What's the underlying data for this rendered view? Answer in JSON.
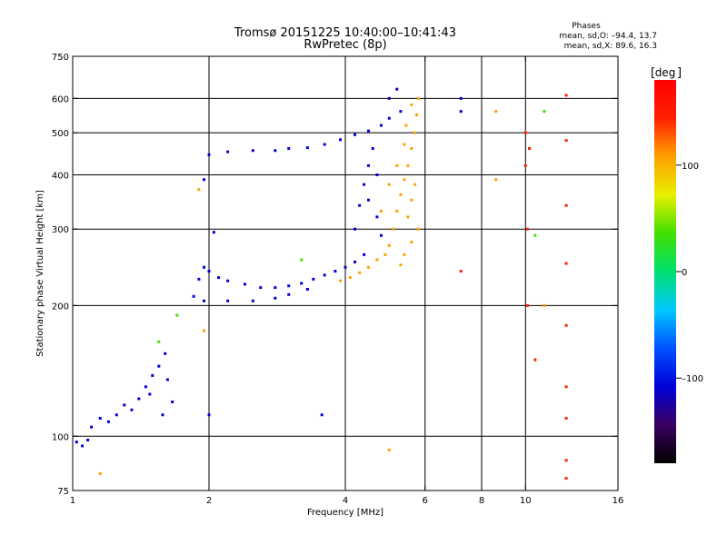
{
  "chart_data": {
    "type": "scatter",
    "title": "Tromsø 20151225 10:40:00–10:41:43",
    "subtitle": "RwPretec (8p)",
    "stats_title": "Phases",
    "stats_o": "mean, sd,O: –94.4, 13.7",
    "stats_x": "mean, sd,X:  89.6, 16.3",
    "xlabel": "Frequency [MHz]",
    "ylabel": "Stationary phase Virtual Height [km]",
    "x_scale": "log",
    "y_scale": "log",
    "xlim": [
      1,
      16
    ],
    "ylim": [
      75,
      750
    ],
    "x_ticks": [
      1,
      2,
      4,
      6,
      8,
      10,
      16
    ],
    "x_tick_labels": [
      "1",
      "2",
      "4",
      "6",
      "8",
      "10",
      "16"
    ],
    "y_ticks": [
      75,
      100,
      200,
      300,
      400,
      500,
      600,
      750
    ],
    "y_tick_labels": [
      "75",
      "100",
      "200",
      "300",
      "400",
      "500",
      "600",
      "750"
    ],
    "grid_x": [
      2,
      4,
      6,
      8,
      10
    ],
    "grid_y": [
      100,
      200,
      300,
      400,
      500,
      600
    ],
    "colorbar": {
      "label": "deg",
      "range": [
        -180,
        180
      ],
      "ticks": [
        100,
        0,
        -100
      ],
      "tick_labels": [
        "100",
        "0",
        "–100"
      ],
      "colors": [
        "#000000",
        "#3a0060",
        "#0000d8",
        "#0050ff",
        "#00c8ff",
        "#00e070",
        "#40e000",
        "#e8f000",
        "#ffa000",
        "#ff2000",
        "#ff0000"
      ]
    },
    "series": [
      {
        "phase_deg": -100,
        "points": [
          [
            1.02,
            97
          ],
          [
            1.05,
            95
          ],
          [
            1.08,
            98
          ],
          [
            1.1,
            105
          ],
          [
            1.15,
            110
          ],
          [
            1.2,
            108
          ],
          [
            1.25,
            112
          ],
          [
            1.3,
            118
          ],
          [
            1.35,
            115
          ],
          [
            1.4,
            122
          ],
          [
            1.45,
            130
          ],
          [
            1.5,
            138
          ],
          [
            1.55,
            145
          ],
          [
            1.6,
            155
          ],
          [
            1.62,
            135
          ],
          [
            1.66,
            120
          ],
          [
            1.58,
            112
          ],
          [
            1.48,
            125
          ],
          [
            1.85,
            210
          ],
          [
            1.9,
            230
          ],
          [
            1.95,
            245
          ],
          [
            2.0,
            240
          ],
          [
            2.1,
            232
          ],
          [
            2.2,
            228
          ],
          [
            2.4,
            224
          ],
          [
            2.6,
            220
          ],
          [
            2.8,
            220
          ],
          [
            3.0,
            222
          ],
          [
            3.2,
            225
          ],
          [
            3.4,
            230
          ],
          [
            3.6,
            235
          ],
          [
            3.8,
            240
          ],
          [
            4.0,
            245
          ],
          [
            4.2,
            252
          ],
          [
            4.4,
            262
          ],
          [
            1.95,
            205
          ],
          [
            2.2,
            205
          ],
          [
            2.5,
            205
          ],
          [
            2.8,
            208
          ],
          [
            3.0,
            212
          ],
          [
            3.3,
            218
          ],
          [
            2.0,
            445
          ],
          [
            2.2,
            452
          ],
          [
            2.5,
            455
          ],
          [
            2.8,
            455
          ],
          [
            3.0,
            460
          ],
          [
            3.3,
            462
          ],
          [
            3.6,
            470
          ],
          [
            3.9,
            482
          ],
          [
            4.2,
            495
          ],
          [
            4.5,
            505
          ],
          [
            4.8,
            520
          ],
          [
            5.0,
            540
          ],
          [
            4.2,
            300
          ],
          [
            4.3,
            340
          ],
          [
            4.4,
            380
          ],
          [
            4.5,
            420
          ],
          [
            4.6,
            460
          ],
          [
            4.7,
            400
          ],
          [
            4.5,
            350
          ],
          [
            4.7,
            320
          ],
          [
            4.8,
            290
          ],
          [
            5.0,
            600
          ],
          [
            5.2,
            630
          ],
          [
            5.3,
            560
          ],
          [
            3.55,
            112
          ],
          [
            2.0,
            112
          ],
          [
            1.95,
            390
          ],
          [
            2.05,
            295
          ],
          [
            7.2,
            600
          ],
          [
            7.2,
            560
          ]
        ]
      },
      {
        "phase_deg": 100,
        "points": [
          [
            3.9,
            228
          ],
          [
            4.1,
            232
          ],
          [
            4.3,
            238
          ],
          [
            4.5,
            245
          ],
          [
            4.7,
            255
          ],
          [
            4.9,
            262
          ],
          [
            5.0,
            275
          ],
          [
            5.1,
            300
          ],
          [
            5.2,
            330
          ],
          [
            5.3,
            360
          ],
          [
            5.4,
            390
          ],
          [
            5.5,
            420
          ],
          [
            5.6,
            460
          ],
          [
            5.7,
            500
          ],
          [
            5.75,
            550
          ],
          [
            5.8,
            600
          ],
          [
            5.4,
            470
          ],
          [
            5.2,
            420
          ],
          [
            5.0,
            380
          ],
          [
            4.8,
            330
          ],
          [
            5.5,
            320
          ],
          [
            5.6,
            350
          ],
          [
            5.7,
            380
          ],
          [
            5.8,
            300
          ],
          [
            5.6,
            280
          ],
          [
            5.4,
            262
          ],
          [
            5.3,
            248
          ],
          [
            5.45,
            520
          ],
          [
            5.6,
            580
          ],
          [
            8.6,
            560
          ],
          [
            8.6,
            390
          ],
          [
            1.9,
            370
          ],
          [
            1.95,
            175
          ],
          [
            5.0,
            93
          ],
          [
            1.15,
            82
          ],
          [
            11.0,
            200
          ]
        ]
      },
      {
        "phase_deg": 150,
        "points": [
          [
            10.0,
            500
          ],
          [
            10.0,
            420
          ],
          [
            10.2,
            460
          ],
          [
            12.3,
            610
          ],
          [
            12.3,
            480
          ],
          [
            12.3,
            340
          ],
          [
            12.3,
            250
          ],
          [
            12.3,
            180
          ],
          [
            12.3,
            130
          ],
          [
            12.3,
            110
          ],
          [
            12.3,
            88
          ],
          [
            12.3,
            80
          ],
          [
            10.1,
            300
          ],
          [
            10.1,
            200
          ],
          [
            10.5,
            150
          ],
          [
            7.2,
            240
          ]
        ]
      },
      {
        "phase_deg": 30,
        "points": [
          [
            3.2,
            255
          ],
          [
            1.7,
            190
          ],
          [
            10.5,
            290
          ],
          [
            11.0,
            560
          ],
          [
            1.55,
            165
          ]
        ]
      }
    ]
  }
}
